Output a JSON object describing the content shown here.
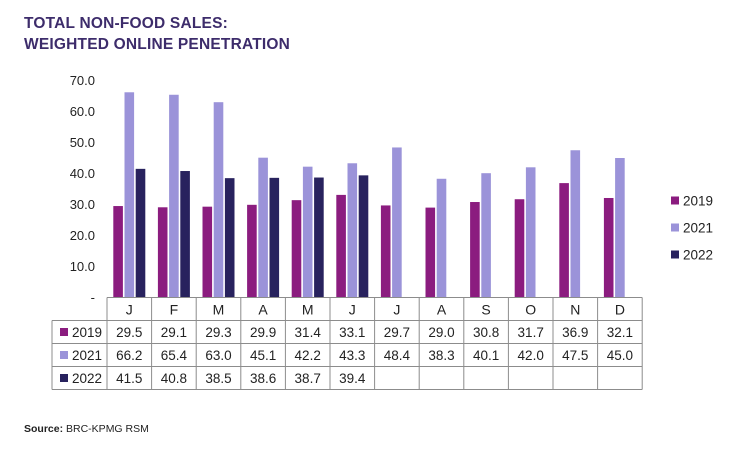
{
  "title": {
    "line1": "TOTAL NON-FOOD SALES:",
    "line2": "WEIGHTED ONLINE PENETRATION"
  },
  "source": {
    "label": "Source:",
    "text": "BRC-KPMG RSM"
  },
  "colors": {
    "2019": "#8b1c7f",
    "2021": "#9b93d9",
    "2022": "#28225e",
    "title": "#3d2c6b"
  },
  "chart_data": {
    "type": "bar",
    "title": "TOTAL NON-FOOD SALES: WEIGHTED ONLINE PENETRATION",
    "xlabel": "",
    "ylabel": "",
    "ylim": [
      0,
      70
    ],
    "yticks": [
      "-",
      "10.0",
      "20.0",
      "30.0",
      "40.0",
      "50.0",
      "60.0",
      "70.0"
    ],
    "legend_position": "right",
    "categories": [
      "J",
      "F",
      "M",
      "A",
      "M",
      "J",
      "J",
      "A",
      "S",
      "O",
      "N",
      "D"
    ],
    "series": [
      {
        "name": "2019",
        "values": [
          29.5,
          29.1,
          29.3,
          29.9,
          31.4,
          33.1,
          29.7,
          29.0,
          30.8,
          31.7,
          36.9,
          32.1
        ]
      },
      {
        "name": "2021",
        "values": [
          66.2,
          65.4,
          63.0,
          45.1,
          42.2,
          43.3,
          48.4,
          38.3,
          40.1,
          42.0,
          47.5,
          45.0
        ]
      },
      {
        "name": "2022",
        "values": [
          41.5,
          40.8,
          38.5,
          38.6,
          38.7,
          39.4,
          null,
          null,
          null,
          null,
          null,
          null
        ]
      }
    ]
  }
}
